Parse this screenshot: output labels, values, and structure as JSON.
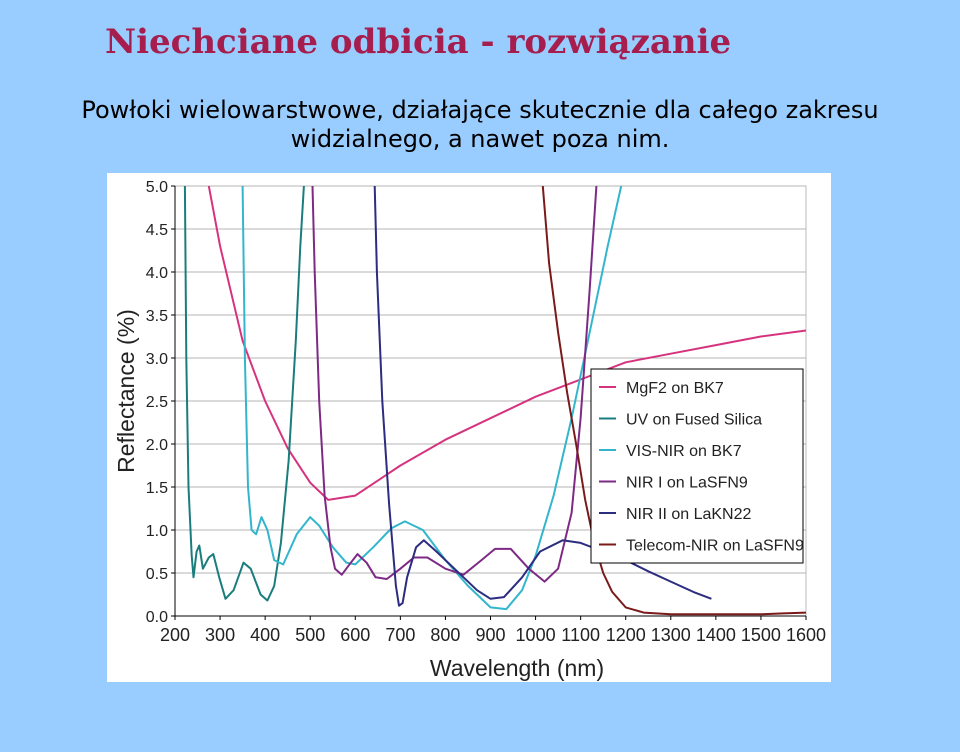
{
  "slide": {
    "title": "Niechciane odbicia - rozwiązanie",
    "subtitle_line1": "Powłoki wielowarstwowe, działające skutecznie dla całego zakresu",
    "subtitle_line2": "widzialnego, a nawet poza nim."
  },
  "chart_data": {
    "type": "line",
    "xlabel": "Wavelength (nm)",
    "ylabel": "Reflectance (%)",
    "xlim": [
      200,
      1600
    ],
    "ylim": [
      0,
      5
    ],
    "x_ticks": [
      200,
      300,
      400,
      500,
      600,
      700,
      800,
      900,
      1000,
      1100,
      1200,
      1300,
      1400,
      1500,
      1600
    ],
    "y_ticks": [
      "0.0",
      "0.5",
      "1.0",
      "1.5",
      "2.0",
      "2.5",
      "3.0",
      "3.5",
      "4.0",
      "4.5",
      "5.0"
    ],
    "grid": true,
    "legend_position": "right",
    "series": [
      {
        "name": "MgF2 on BK7",
        "color": "#d6337f",
        "points": [
          [
            275,
            5.0
          ],
          [
            300,
            4.3
          ],
          [
            350,
            3.2
          ],
          [
            400,
            2.5
          ],
          [
            450,
            1.95
          ],
          [
            500,
            1.55
          ],
          [
            540,
            1.35
          ],
          [
            600,
            1.4
          ],
          [
            700,
            1.75
          ],
          [
            800,
            2.05
          ],
          [
            900,
            2.3
          ],
          [
            1000,
            2.55
          ],
          [
            1100,
            2.75
          ],
          [
            1200,
            2.95
          ],
          [
            1300,
            3.05
          ],
          [
            1400,
            3.15
          ],
          [
            1500,
            3.25
          ],
          [
            1600,
            3.32
          ]
        ]
      },
      {
        "name": "UV on Fused Silica",
        "color": "#1a7d7d",
        "points": [
          [
            222,
            5.0
          ],
          [
            225,
            3.0
          ],
          [
            230,
            1.5
          ],
          [
            237,
            0.7
          ],
          [
            241,
            0.45
          ],
          [
            248,
            0.75
          ],
          [
            254,
            0.82
          ],
          [
            262,
            0.55
          ],
          [
            275,
            0.68
          ],
          [
            285,
            0.72
          ],
          [
            298,
            0.45
          ],
          [
            312,
            0.2
          ],
          [
            330,
            0.3
          ],
          [
            352,
            0.62
          ],
          [
            368,
            0.55
          ],
          [
            390,
            0.25
          ],
          [
            405,
            0.18
          ],
          [
            420,
            0.35
          ],
          [
            435,
            0.85
          ],
          [
            452,
            1.8
          ],
          [
            468,
            3.2
          ],
          [
            478,
            4.3
          ],
          [
            486,
            5.0
          ]
        ]
      },
      {
        "name": "VIS-NIR on BK7",
        "color": "#33b6cc",
        "points": [
          [
            350,
            5.0
          ],
          [
            355,
            3.0
          ],
          [
            362,
            1.5
          ],
          [
            370,
            1.0
          ],
          [
            380,
            0.95
          ],
          [
            392,
            1.15
          ],
          [
            405,
            1.0
          ],
          [
            420,
            0.65
          ],
          [
            440,
            0.6
          ],
          [
            470,
            0.95
          ],
          [
            500,
            1.15
          ],
          [
            520,
            1.05
          ],
          [
            550,
            0.8
          ],
          [
            580,
            0.62
          ],
          [
            600,
            0.6
          ],
          [
            640,
            0.8
          ],
          [
            680,
            1.02
          ],
          [
            710,
            1.1
          ],
          [
            750,
            1.0
          ],
          [
            800,
            0.65
          ],
          [
            850,
            0.35
          ],
          [
            900,
            0.1
          ],
          [
            935,
            0.08
          ],
          [
            970,
            0.3
          ],
          [
            1000,
            0.7
          ],
          [
            1040,
            1.4
          ],
          [
            1080,
            2.3
          ],
          [
            1120,
            3.3
          ],
          [
            1160,
            4.3
          ],
          [
            1190,
            5.0
          ]
        ]
      },
      {
        "name": "NIR I on LaSFN9",
        "color": "#7d2a85",
        "points": [
          [
            505,
            5.0
          ],
          [
            510,
            4.0
          ],
          [
            520,
            2.5
          ],
          [
            532,
            1.4
          ],
          [
            545,
            0.8
          ],
          [
            555,
            0.55
          ],
          [
            570,
            0.48
          ],
          [
            590,
            0.62
          ],
          [
            605,
            0.72
          ],
          [
            625,
            0.62
          ],
          [
            645,
            0.45
          ],
          [
            670,
            0.43
          ],
          [
            700,
            0.55
          ],
          [
            730,
            0.68
          ],
          [
            760,
            0.68
          ],
          [
            800,
            0.55
          ],
          [
            840,
            0.48
          ],
          [
            880,
            0.65
          ],
          [
            910,
            0.78
          ],
          [
            945,
            0.78
          ],
          [
            985,
            0.55
          ],
          [
            1020,
            0.4
          ],
          [
            1050,
            0.55
          ],
          [
            1080,
            1.2
          ],
          [
            1100,
            2.3
          ],
          [
            1120,
            3.8
          ],
          [
            1135,
            5.0
          ]
        ]
      },
      {
        "name": "NIR II on LaKN22",
        "color": "#2c2c80",
        "points": [
          [
            643,
            5.0
          ],
          [
            648,
            4.0
          ],
          [
            660,
            2.5
          ],
          [
            675,
            1.3
          ],
          [
            690,
            0.35
          ],
          [
            697,
            0.12
          ],
          [
            705,
            0.15
          ],
          [
            715,
            0.45
          ],
          [
            735,
            0.8
          ],
          [
            752,
            0.88
          ],
          [
            780,
            0.75
          ],
          [
            820,
            0.55
          ],
          [
            870,
            0.3
          ],
          [
            900,
            0.2
          ],
          [
            930,
            0.22
          ],
          [
            970,
            0.45
          ],
          [
            1010,
            0.75
          ],
          [
            1060,
            0.88
          ],
          [
            1100,
            0.85
          ],
          [
            1150,
            0.75
          ],
          [
            1200,
            0.65
          ],
          [
            1250,
            0.52
          ],
          [
            1300,
            0.4
          ],
          [
            1350,
            0.28
          ],
          [
            1390,
            0.2
          ]
        ]
      },
      {
        "name": "Telecom-NIR on LaSFN9",
        "color": "#7a1a1a",
        "points": [
          [
            1016,
            5.0
          ],
          [
            1030,
            4.1
          ],
          [
            1050,
            3.3
          ],
          [
            1070,
            2.6
          ],
          [
            1090,
            2.0
          ],
          [
            1110,
            1.35
          ],
          [
            1130,
            0.85
          ],
          [
            1150,
            0.5
          ],
          [
            1170,
            0.28
          ],
          [
            1200,
            0.1
          ],
          [
            1240,
            0.04
          ],
          [
            1300,
            0.02
          ],
          [
            1400,
            0.02
          ],
          [
            1500,
            0.02
          ],
          [
            1550,
            0.03
          ],
          [
            1600,
            0.04
          ]
        ]
      }
    ]
  }
}
